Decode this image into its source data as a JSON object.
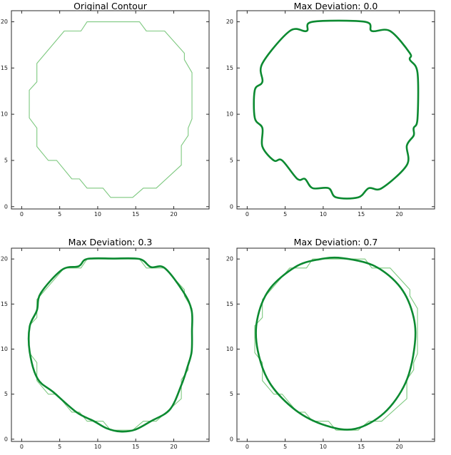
{
  "style": {
    "background": "#ffffff",
    "axis_color": "#2a2a2a",
    "tick_label_color": "#1a1a1a",
    "original_line_color": "#7dc87f",
    "smoothed_line_color": "#0c8a31"
  },
  "chart_data": [
    {
      "type": "line",
      "title": "Original Contour",
      "xlabel": "",
      "ylabel": "",
      "xlim": [
        -1.35,
        24.65
      ],
      "ylim": [
        -0.25,
        21.2
      ],
      "xticks": [
        "0",
        "5",
        "10",
        "15",
        "20"
      ],
      "yticks": [
        "0",
        "5",
        "10",
        "15",
        "20"
      ],
      "xtick_values": [
        0,
        5,
        10,
        15,
        20
      ],
      "ytick_values": [
        0,
        5,
        10,
        15,
        20
      ],
      "grid": false,
      "legend": "none",
      "series": [
        {
          "name": "original-contour",
          "color": "#7dc87f",
          "width": 1.1,
          "smooth": false,
          "closed": true,
          "points": [
            [
              8.6,
              20
            ],
            [
              15.5,
              20
            ],
            [
              16.4,
              19
            ],
            [
              18.8,
              19
            ],
            [
              21.4,
              16.6
            ],
            [
              21.4,
              15.9
            ],
            [
              22.4,
              14.5
            ],
            [
              22.4,
              9.5
            ],
            [
              21.9,
              8.5
            ],
            [
              21.9,
              7.7
            ],
            [
              21,
              6.6
            ],
            [
              21,
              4.5
            ],
            [
              17.7,
              2
            ],
            [
              16,
              2
            ],
            [
              14.6,
              1
            ],
            [
              11.7,
              1
            ],
            [
              10.7,
              2
            ],
            [
              8.6,
              2
            ],
            [
              7.6,
              3
            ],
            [
              6.6,
              3
            ],
            [
              4.6,
              5
            ],
            [
              3.5,
              5
            ],
            [
              2,
              6.5
            ],
            [
              2,
              8.5
            ],
            [
              1,
              9.6
            ],
            [
              1,
              12.6
            ],
            [
              2,
              13.5
            ],
            [
              2,
              15.5
            ],
            [
              5.6,
              19
            ],
            [
              7.8,
              19
            ]
          ]
        }
      ]
    },
    {
      "type": "line",
      "title": "Max Deviation: 0.0",
      "xlabel": "",
      "ylabel": "",
      "xlim": [
        -1.35,
        24.65
      ],
      "ylim": [
        -0.25,
        21.2
      ],
      "xticks": [
        "0",
        "5",
        "10",
        "15",
        "20"
      ],
      "yticks": [
        "0",
        "5",
        "10",
        "15",
        "20"
      ],
      "xtick_values": [
        0,
        5,
        10,
        15,
        20
      ],
      "ytick_values": [
        0,
        5,
        10,
        15,
        20
      ],
      "grid": false,
      "legend": "none",
      "series": [
        {
          "name": "smoothed-contour-dev-0.0",
          "color": "#0c8a31",
          "width": 2.6,
          "smooth": true,
          "closed": true,
          "points": [
            [
              8.6,
              20
            ],
            [
              15.5,
              20
            ],
            [
              16.4,
              19
            ],
            [
              18.8,
              19
            ],
            [
              21.4,
              16.6
            ],
            [
              21.4,
              15.9
            ],
            [
              22.4,
              14.5
            ],
            [
              22.4,
              9.5
            ],
            [
              21.9,
              8.5
            ],
            [
              21.9,
              7.7
            ],
            [
              21,
              6.6
            ],
            [
              21,
              4.5
            ],
            [
              17.7,
              2
            ],
            [
              16,
              2
            ],
            [
              14.6,
              1
            ],
            [
              11.7,
              1
            ],
            [
              10.7,
              2
            ],
            [
              8.6,
              2
            ],
            [
              7.6,
              3
            ],
            [
              6.6,
              3
            ],
            [
              4.6,
              5
            ],
            [
              3.5,
              5
            ],
            [
              2,
              6.5
            ],
            [
              2,
              8.5
            ],
            [
              1,
              9.6
            ],
            [
              1,
              12.6
            ],
            [
              2,
              13.5
            ],
            [
              2,
              15.5
            ],
            [
              5.6,
              19
            ],
            [
              7.8,
              19
            ]
          ]
        }
      ]
    },
    {
      "type": "line",
      "title": "Max Deviation: 0.3",
      "xlabel": "",
      "ylabel": "",
      "xlim": [
        -1.35,
        24.65
      ],
      "ylim": [
        -0.25,
        21.2
      ],
      "xticks": [
        "0",
        "5",
        "10",
        "15",
        "20"
      ],
      "yticks": [
        "0",
        "5",
        "10",
        "15",
        "20"
      ],
      "xtick_values": [
        0,
        5,
        10,
        15,
        20
      ],
      "ytick_values": [
        0,
        5,
        10,
        15,
        20
      ],
      "grid": false,
      "legend": "none",
      "series": [
        {
          "name": "original-contour",
          "color": "#7dc87f",
          "width": 1.1,
          "smooth": false,
          "closed": true,
          "points": [
            [
              8.6,
              20
            ],
            [
              15.5,
              20
            ],
            [
              16.4,
              19
            ],
            [
              18.8,
              19
            ],
            [
              21.4,
              16.6
            ],
            [
              21.4,
              15.9
            ],
            [
              22.4,
              14.5
            ],
            [
              22.4,
              9.5
            ],
            [
              21.9,
              8.5
            ],
            [
              21.9,
              7.7
            ],
            [
              21,
              6.6
            ],
            [
              21,
              4.5
            ],
            [
              17.7,
              2
            ],
            [
              16,
              2
            ],
            [
              14.6,
              1
            ],
            [
              11.7,
              1
            ],
            [
              10.7,
              2
            ],
            [
              8.6,
              2
            ],
            [
              7.6,
              3
            ],
            [
              6.6,
              3
            ],
            [
              4.6,
              5
            ],
            [
              3.5,
              5
            ],
            [
              2,
              6.5
            ],
            [
              2,
              8.5
            ],
            [
              1,
              9.6
            ],
            [
              1,
              12.6
            ],
            [
              2,
              13.5
            ],
            [
              2,
              15.5
            ],
            [
              5.6,
              19
            ],
            [
              7.8,
              19
            ]
          ]
        },
        {
          "name": "smoothed-contour-dev-0.3",
          "color": "#0c8a31",
          "width": 2.6,
          "smooth": true,
          "closed": true,
          "points": [
            [
              8.6,
              20
            ],
            [
              12,
              20.05
            ],
            [
              15.5,
              20
            ],
            [
              17,
              19.1
            ],
            [
              18.8,
              19
            ],
            [
              21.3,
              16.3
            ],
            [
              22.35,
              14.3
            ],
            [
              22.4,
              12
            ],
            [
              22.35,
              9.7
            ],
            [
              21.8,
              8
            ],
            [
              21,
              6
            ],
            [
              19.5,
              3.3
            ],
            [
              17,
              2
            ],
            [
              14.9,
              1.05
            ],
            [
              13,
              0.85
            ],
            [
              11.2,
              1.2
            ],
            [
              9.5,
              2
            ],
            [
              7.2,
              3
            ],
            [
              4.2,
              5.2
            ],
            [
              2.1,
              6.7
            ],
            [
              1.05,
              9.7
            ],
            [
              1.05,
              12.5
            ],
            [
              2,
              14.3
            ],
            [
              2.5,
              16.2
            ],
            [
              5.3,
              18.8
            ],
            [
              7.5,
              19.2
            ]
          ]
        }
      ]
    },
    {
      "type": "line",
      "title": "Max Deviation: 0.7",
      "xlabel": "",
      "ylabel": "",
      "xlim": [
        -1.35,
        24.65
      ],
      "ylim": [
        -0.25,
        21.2
      ],
      "xticks": [
        "0",
        "5",
        "10",
        "15",
        "20"
      ],
      "yticks": [
        "0",
        "5",
        "10",
        "15",
        "20"
      ],
      "xtick_values": [
        0,
        5,
        10,
        15,
        20
      ],
      "ytick_values": [
        0,
        5,
        10,
        15,
        20
      ],
      "grid": false,
      "legend": "none",
      "series": [
        {
          "name": "original-contour",
          "color": "#7dc87f",
          "width": 1.1,
          "smooth": false,
          "closed": true,
          "points": [
            [
              8.6,
              20
            ],
            [
              15.5,
              20
            ],
            [
              16.4,
              19
            ],
            [
              18.8,
              19
            ],
            [
              21.4,
              16.6
            ],
            [
              21.4,
              15.9
            ],
            [
              22.4,
              14.5
            ],
            [
              22.4,
              9.5
            ],
            [
              21.9,
              8.5
            ],
            [
              21.9,
              7.7
            ],
            [
              21,
              6.6
            ],
            [
              21,
              4.5
            ],
            [
              17.7,
              2
            ],
            [
              16,
              2
            ],
            [
              14.6,
              1
            ],
            [
              11.7,
              1
            ],
            [
              10.7,
              2
            ],
            [
              8.6,
              2
            ],
            [
              7.6,
              3
            ],
            [
              6.6,
              3
            ],
            [
              4.6,
              5
            ],
            [
              3.5,
              5
            ],
            [
              2,
              6.5
            ],
            [
              2,
              8.5
            ],
            [
              1,
              9.6
            ],
            [
              1,
              12.6
            ],
            [
              2,
              13.5
            ],
            [
              2,
              15.5
            ],
            [
              5.6,
              19
            ],
            [
              7.8,
              19
            ]
          ]
        },
        {
          "name": "smoothed-contour-dev-0.7",
          "color": "#0c8a31",
          "width": 2.6,
          "smooth": true,
          "closed": true,
          "points": [
            [
              12.5,
              20.1
            ],
            [
              16.8,
              19.2
            ],
            [
              20.2,
              16.8
            ],
            [
              21.9,
              13.5
            ],
            [
              22,
              10.2
            ],
            [
              20.8,
              6.2
            ],
            [
              18,
              2.9
            ],
            [
              14.2,
              1.15
            ],
            [
              10.4,
              1.5
            ],
            [
              6.4,
              3.2
            ],
            [
              3,
              6.2
            ],
            [
              1.4,
              9.8
            ],
            [
              1.3,
              13.2
            ],
            [
              2.9,
              16.6
            ],
            [
              6.3,
              19.1
            ],
            [
              9.4,
              19.95
            ]
          ]
        }
      ]
    }
  ]
}
